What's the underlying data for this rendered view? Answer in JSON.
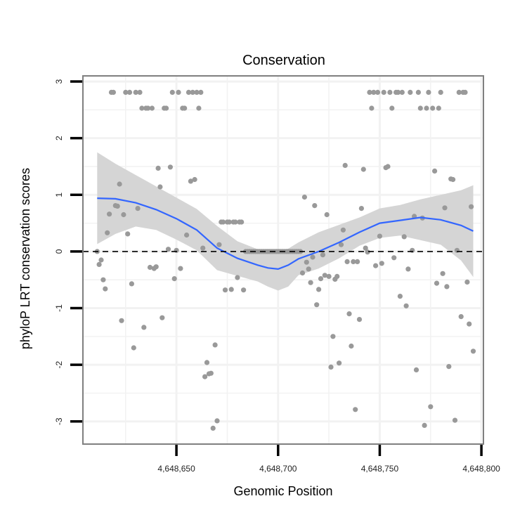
{
  "chart_data": {
    "type": "scatter",
    "title": "Conservation",
    "xlabel": "Genomic Position",
    "ylabel": "phyloP LRT conservation scores",
    "xlim": [
      4648604,
      4648801
    ],
    "ylim": [
      -3.4,
      3.1
    ],
    "x_ticks": [
      4648650,
      4648700,
      4648750,
      4648800
    ],
    "x_tick_labels": [
      "4,648,650",
      "4,648,700",
      "4,648,750",
      "4,648,800"
    ],
    "y_ticks": [
      -3,
      -2,
      -1,
      0,
      1,
      2,
      3
    ],
    "y_tick_labels": [
      "-3",
      "-2",
      "-1",
      "0",
      "1",
      "2",
      "3"
    ],
    "reference_line": {
      "y": 0,
      "style": "dashed"
    },
    "colors": {
      "points": "#999999",
      "smooth_line": "#3366ff",
      "confidence_band": "#d3d3d3",
      "panel_border": "#7f7f7f",
      "grid": "#f2f2f2"
    },
    "series": [
      {
        "name": "scores",
        "type": "scatter",
        "points": [
          [
            4648611,
            0
          ],
          [
            4648612,
            -0.23
          ],
          [
            4648613,
            -0.15
          ],
          [
            4648614,
            -0.5
          ],
          [
            4648615,
            -0.66
          ],
          [
            4648616,
            0.33
          ],
          [
            4648617,
            0.66
          ],
          [
            4648618,
            2.81
          ],
          [
            4648619,
            2.81
          ],
          [
            4648620,
            0.81
          ],
          [
            4648621,
            0.8
          ],
          [
            4648622,
            1.19
          ],
          [
            4648623,
            -1.22
          ],
          [
            4648624,
            0.65
          ],
          [
            4648625,
            2.81
          ],
          [
            4648626,
            0.31
          ],
          [
            4648627,
            2.81
          ],
          [
            4648628,
            -0.57
          ],
          [
            4648629,
            -1.7
          ],
          [
            4648630,
            2.81
          ],
          [
            4648631,
            0.76
          ],
          [
            4648632,
            2.81
          ],
          [
            4648633,
            2.53
          ],
          [
            4648634,
            -1.34
          ],
          [
            4648635,
            2.53
          ],
          [
            4648636,
            2.53
          ],
          [
            4648637,
            -0.28
          ],
          [
            4648638,
            2.53
          ],
          [
            4648639,
            -0.3
          ],
          [
            4648640,
            -0.27
          ],
          [
            4648641,
            1.47
          ],
          [
            4648642,
            1.14
          ],
          [
            4648643,
            -1.17
          ],
          [
            4648644,
            2.53
          ],
          [
            4648645,
            2.53
          ],
          [
            4648646,
            0.04
          ],
          [
            4648647,
            1.49
          ],
          [
            4648648,
            2.81
          ],
          [
            4648649,
            -0.48
          ],
          [
            4648650,
            0.02
          ],
          [
            4648651,
            2.81
          ],
          [
            4648652,
            -0.3
          ],
          [
            4648653,
            2.53
          ],
          [
            4648654,
            2.53
          ],
          [
            4648655,
            0.29
          ],
          [
            4648656,
            2.81
          ],
          [
            4648657,
            1.24
          ],
          [
            4648658,
            2.81
          ],
          [
            4648659,
            1.27
          ],
          [
            4648660,
            2.81
          ],
          [
            4648661,
            2.53
          ],
          [
            4648662,
            2.81
          ],
          [
            4648663,
            0.06
          ],
          [
            4648664,
            -2.21
          ],
          [
            4648665,
            -1.96
          ],
          [
            4648666,
            -2.16
          ],
          [
            4648667,
            -2.15
          ],
          [
            4648668,
            -3.12
          ],
          [
            4648669,
            -1.65
          ],
          [
            4648670,
            -2.99
          ],
          [
            4648671,
            0.12
          ],
          [
            4648672,
            0.52
          ],
          [
            4648673,
            0.52
          ],
          [
            4648674,
            -0.68
          ],
          [
            4648675,
            0.52
          ],
          [
            4648676,
            0.52
          ],
          [
            4648677,
            -0.67
          ],
          [
            4648678,
            0.52
          ],
          [
            4648679,
            0.52
          ],
          [
            4648680,
            -0.46
          ],
          [
            4648681,
            0.52
          ],
          [
            4648682,
            0.52
          ],
          [
            4648683,
            -0.68
          ],
          [
            4648684,
            0
          ],
          [
            4648685,
            0
          ],
          [
            4648686,
            0
          ],
          [
            4648687,
            0
          ],
          [
            4648688,
            0
          ],
          [
            4648689,
            0
          ],
          [
            4648690,
            0
          ],
          [
            4648691,
            0
          ],
          [
            4648692,
            0
          ],
          [
            4648693,
            0
          ],
          [
            4648694,
            0
          ],
          [
            4648695,
            0
          ],
          [
            4648696,
            0
          ],
          [
            4648697,
            0
          ],
          [
            4648698,
            0
          ],
          [
            4648699,
            0
          ],
          [
            4648700,
            0
          ],
          [
            4648701,
            0
          ],
          [
            4648702,
            0
          ],
          [
            4648703,
            0
          ],
          [
            4648704,
            0
          ],
          [
            4648705,
            0
          ],
          [
            4648706,
            0
          ],
          [
            4648707,
            0
          ],
          [
            4648708,
            0
          ],
          [
            4648709,
            0
          ],
          [
            4648710,
            0
          ],
          [
            4648711,
            0
          ],
          [
            4648712,
            -0.38
          ],
          [
            4648713,
            0.96
          ],
          [
            4648714,
            -0.19
          ],
          [
            4648715,
            -0.31
          ],
          [
            4648716,
            -0.55
          ],
          [
            4648717,
            -0.1
          ],
          [
            4648718,
            0.81
          ],
          [
            4648719,
            -0.94
          ],
          [
            4648720,
            -0.67
          ],
          [
            4648721,
            -0.48
          ],
          [
            4648722,
            -0.06
          ],
          [
            4648723,
            -0.42
          ],
          [
            4648724,
            0.65
          ],
          [
            4648725,
            -0.44
          ],
          [
            4648726,
            -2.04
          ],
          [
            4648727,
            -1.5
          ],
          [
            4648728,
            -0.49
          ],
          [
            4648729,
            -0.44
          ],
          [
            4648730,
            -1.97
          ],
          [
            4648731,
            0.12
          ],
          [
            4648732,
            0.38
          ],
          [
            4648733,
            1.52
          ],
          [
            4648734,
            -0.18
          ],
          [
            4648735,
            -1.1
          ],
          [
            4648736,
            -1.67
          ],
          [
            4648737,
            -0.18
          ],
          [
            4648738,
            -2.79
          ],
          [
            4648739,
            -0.18
          ],
          [
            4648740,
            -1.2
          ],
          [
            4648741,
            0.76
          ],
          [
            4648742,
            1.45
          ],
          [
            4648743,
            0.06
          ],
          [
            4648744,
            -0.01
          ],
          [
            4648745,
            2.81
          ],
          [
            4648746,
            2.53
          ],
          [
            4648747,
            2.81
          ],
          [
            4648748,
            -0.25
          ],
          [
            4648749,
            2.81
          ],
          [
            4648750,
            0.27
          ],
          [
            4648751,
            -0.21
          ],
          [
            4648752,
            2.81
          ],
          [
            4648753,
            1.48
          ],
          [
            4648754,
            1.5
          ],
          [
            4648755,
            2.81
          ],
          [
            4648756,
            2.53
          ],
          [
            4648757,
            -0.11
          ],
          [
            4648758,
            2.81
          ],
          [
            4648759,
            2.81
          ],
          [
            4648760,
            -0.79
          ],
          [
            4648761,
            2.81
          ],
          [
            4648762,
            0.26
          ],
          [
            4648763,
            -0.96
          ],
          [
            4648764,
            -0.31
          ],
          [
            4648765,
            2.81
          ],
          [
            4648766,
            0.02
          ],
          [
            4648767,
            0.62
          ],
          [
            4648768,
            -2.09
          ],
          [
            4648769,
            2.81
          ],
          [
            4648770,
            2.53
          ],
          [
            4648771,
            0.59
          ],
          [
            4648772,
            -3.07
          ],
          [
            4648773,
            2.53
          ],
          [
            4648774,
            2.81
          ],
          [
            4648775,
            -2.74
          ],
          [
            4648776,
            2.53
          ],
          [
            4648777,
            1.42
          ],
          [
            4648778,
            -0.56
          ],
          [
            4648779,
            2.53
          ],
          [
            4648780,
            2.81
          ],
          [
            4648781,
            -0.39
          ],
          [
            4648782,
            0.77
          ],
          [
            4648783,
            -0.62
          ],
          [
            4648784,
            -2.03
          ],
          [
            4648785,
            1.28
          ],
          [
            4648786,
            1.27
          ],
          [
            4648787,
            -2.98
          ],
          [
            4648788,
            0.02
          ],
          [
            4648789,
            2.81
          ],
          [
            4648790,
            -1.15
          ],
          [
            4648791,
            2.81
          ],
          [
            4648792,
            2.81
          ],
          [
            4648793,
            -0.54
          ],
          [
            4648794,
            -1.28
          ],
          [
            4648795,
            0.79
          ],
          [
            4648796,
            -1.76
          ]
        ]
      },
      {
        "name": "smooth",
        "type": "line",
        "x": [
          4648611,
          4648620,
          4648630,
          4648640,
          4648650,
          4648660,
          4648670,
          4648680,
          4648690,
          4648695,
          4648700,
          4648705,
          4648710,
          4648720,
          4648730,
          4648740,
          4648750,
          4648760,
          4648770,
          4648780,
          4648790,
          4648796
        ],
        "y": [
          0.94,
          0.93,
          0.86,
          0.74,
          0.58,
          0.38,
          0.06,
          -0.12,
          -0.24,
          -0.29,
          -0.31,
          -0.24,
          -0.13,
          0.0,
          0.16,
          0.34,
          0.5,
          0.55,
          0.6,
          0.56,
          0.46,
          0.36
        ],
        "ci_upper": [
          1.75,
          1.55,
          1.35,
          1.15,
          0.95,
          0.75,
          0.45,
          0.18,
          0.04,
          0.02,
          0.01,
          0.05,
          0.16,
          0.34,
          0.47,
          0.6,
          0.76,
          0.82,
          0.92,
          1.0,
          1.08,
          1.17
        ],
        "ci_lower": [
          0.13,
          0.31,
          0.44,
          0.38,
          0.21,
          0.02,
          -0.33,
          -0.43,
          -0.53,
          -0.62,
          -0.69,
          -0.62,
          -0.42,
          -0.3,
          -0.12,
          0.1,
          0.24,
          0.28,
          0.2,
          0.12,
          -0.16,
          -0.45
        ]
      }
    ]
  }
}
